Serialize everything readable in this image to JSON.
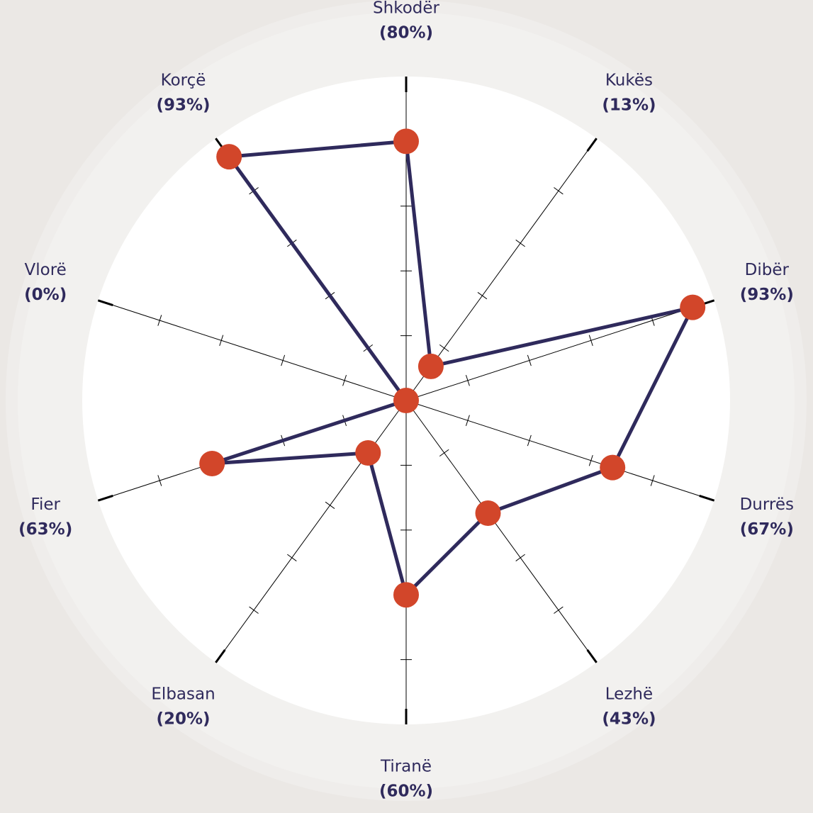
{
  "chart_data": {
    "type": "radar",
    "categories": [
      "Shkodër",
      "Kukës",
      "Dibër",
      "Durrës",
      "Lezhë",
      "Tiranë",
      "Elbasan",
      "Fier",
      "Vlorë",
      "Korçë"
    ],
    "values": [
      80,
      13,
      93,
      67,
      43,
      60,
      20,
      63,
      0,
      93
    ],
    "value_labels": [
      "(80%)",
      "(13%)",
      "(93%)",
      "(67%)",
      "(43%)",
      "(60%)",
      "(20%)",
      "(63%)",
      "(0%)",
      "(93%)"
    ],
    "color": "#2f2a5c",
    "marker_color": "#d2462a",
    "rlim": [
      0,
      100
    ],
    "rticks": [
      20,
      40,
      60,
      80,
      100
    ]
  }
}
